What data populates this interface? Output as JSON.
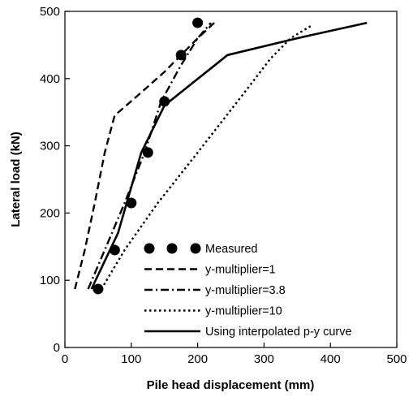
{
  "chart_data": {
    "type": "line",
    "xlabel": "Pile head displacement (mm)",
    "ylabel": "Lateral load (kN)",
    "xlim": [
      0,
      500
    ],
    "ylim": [
      0,
      500
    ],
    "xticks": [
      0,
      100,
      200,
      300,
      400,
      500
    ],
    "yticks": [
      0,
      100,
      200,
      300,
      400,
      500
    ],
    "grid": false,
    "legend_position": "bottom-right",
    "series": [
      {
        "name": "Measured",
        "style": "markers",
        "color": "#000000",
        "points": [
          [
            50,
            87
          ],
          [
            75,
            145
          ],
          [
            100,
            215
          ],
          [
            125,
            290
          ],
          [
            150,
            366
          ],
          [
            175,
            435
          ],
          [
            200,
            483
          ]
        ]
      },
      {
        "name": "y-multiplier=1",
        "style": "dashed",
        "color": "#000000",
        "points": [
          [
            15,
            87
          ],
          [
            30,
            145
          ],
          [
            45,
            215
          ],
          [
            60,
            290
          ],
          [
            75,
            345
          ],
          [
            110,
            375
          ],
          [
            150,
            410
          ],
          [
            200,
            460
          ],
          [
            225,
            483
          ]
        ]
      },
      {
        "name": "y-multiplier=3.8",
        "style": "dashdot",
        "color": "#000000",
        "points": [
          [
            35,
            87
          ],
          [
            60,
            145
          ],
          [
            90,
            215
          ],
          [
            120,
            290
          ],
          [
            145,
            366
          ],
          [
            175,
            420
          ],
          [
            200,
            460
          ],
          [
            220,
            483
          ]
        ]
      },
      {
        "name": "y-multiplier=10",
        "style": "dotted",
        "color": "#000000",
        "points": [
          [
            55,
            87
          ],
          [
            90,
            145
          ],
          [
            140,
            215
          ],
          [
            200,
            290
          ],
          [
            260,
            366
          ],
          [
            310,
            430
          ],
          [
            340,
            460
          ],
          [
            370,
            478
          ]
        ]
      },
      {
        "name": "Using interpolated p-y curve",
        "style": "solid",
        "color": "#000000",
        "points": [
          [
            40,
            87
          ],
          [
            80,
            170
          ],
          [
            115,
            290
          ],
          [
            150,
            360
          ],
          [
            245,
            435
          ],
          [
            350,
            460
          ],
          [
            455,
            483
          ]
        ]
      }
    ]
  }
}
